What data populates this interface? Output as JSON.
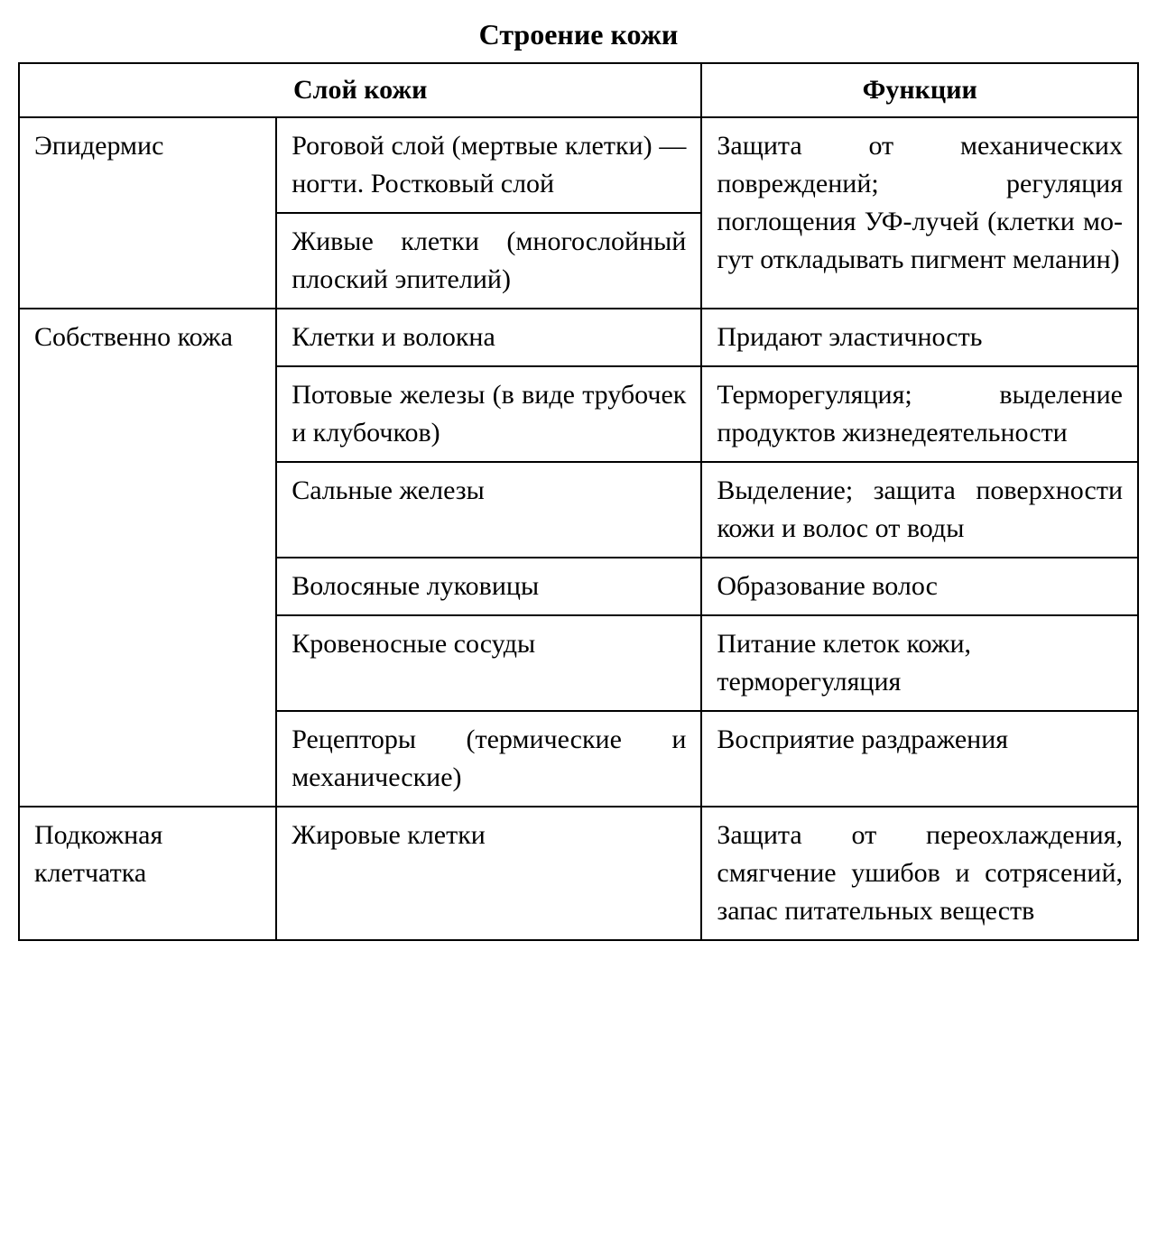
{
  "title": "Строение кожи",
  "headers": {
    "col12": "Слой кожи",
    "col3": "Функции"
  },
  "table": {
    "border_color": "#000000",
    "border_width": 2,
    "background_color": "#ffffff",
    "text_color": "#000000",
    "title_fontsize": 32,
    "cell_fontsize": 30,
    "column_widths": [
      "23%",
      "38%",
      "39%"
    ]
  },
  "rows": {
    "epidermis": {
      "label": "Эпидермис",
      "sub1": "Роговой слой (мерт­вые клетки) — ногти. Ростковый слой",
      "sub2": "Живые клетки (мно­гослойный плоский эпителий)",
      "func": "Защита от механичес­ких повреждений; ре­гуляция поглощения УФ-лучей (клетки мо­гут откладывать пиг­мент меланин)"
    },
    "dermis": {
      "label": "Собственно кожа",
      "r1": {
        "sub": "Клетки и волокна",
        "func": "Придают эластичность"
      },
      "r2": {
        "sub": "Потовые железы (в виде трубочек и клу­бочков)",
        "func": "Терморегуляция; выделение продуктов жизнедеятельности"
      },
      "r3": {
        "sub": "Сальные железы",
        "func": "Выделение; защита по­верхности кожи и во­лос от воды"
      },
      "r4": {
        "sub": "Волосяные луковицы",
        "func": "Образование волос"
      },
      "r5": {
        "sub": "Кровеносные сосуды",
        "func": "Питание клеток кожи, терморегуляция"
      },
      "r6": {
        "sub": "Рецепторы (термическ­ие и механические)",
        "func": "Восприятие раздраже­ния"
      }
    },
    "hypodermis": {
      "label": "Подкожная клетчатка",
      "sub": "Жировые клетки",
      "func": "Защита от переохлаж­дения, смягчение уши­бов и сотрясений, запас питательных веществ"
    }
  }
}
